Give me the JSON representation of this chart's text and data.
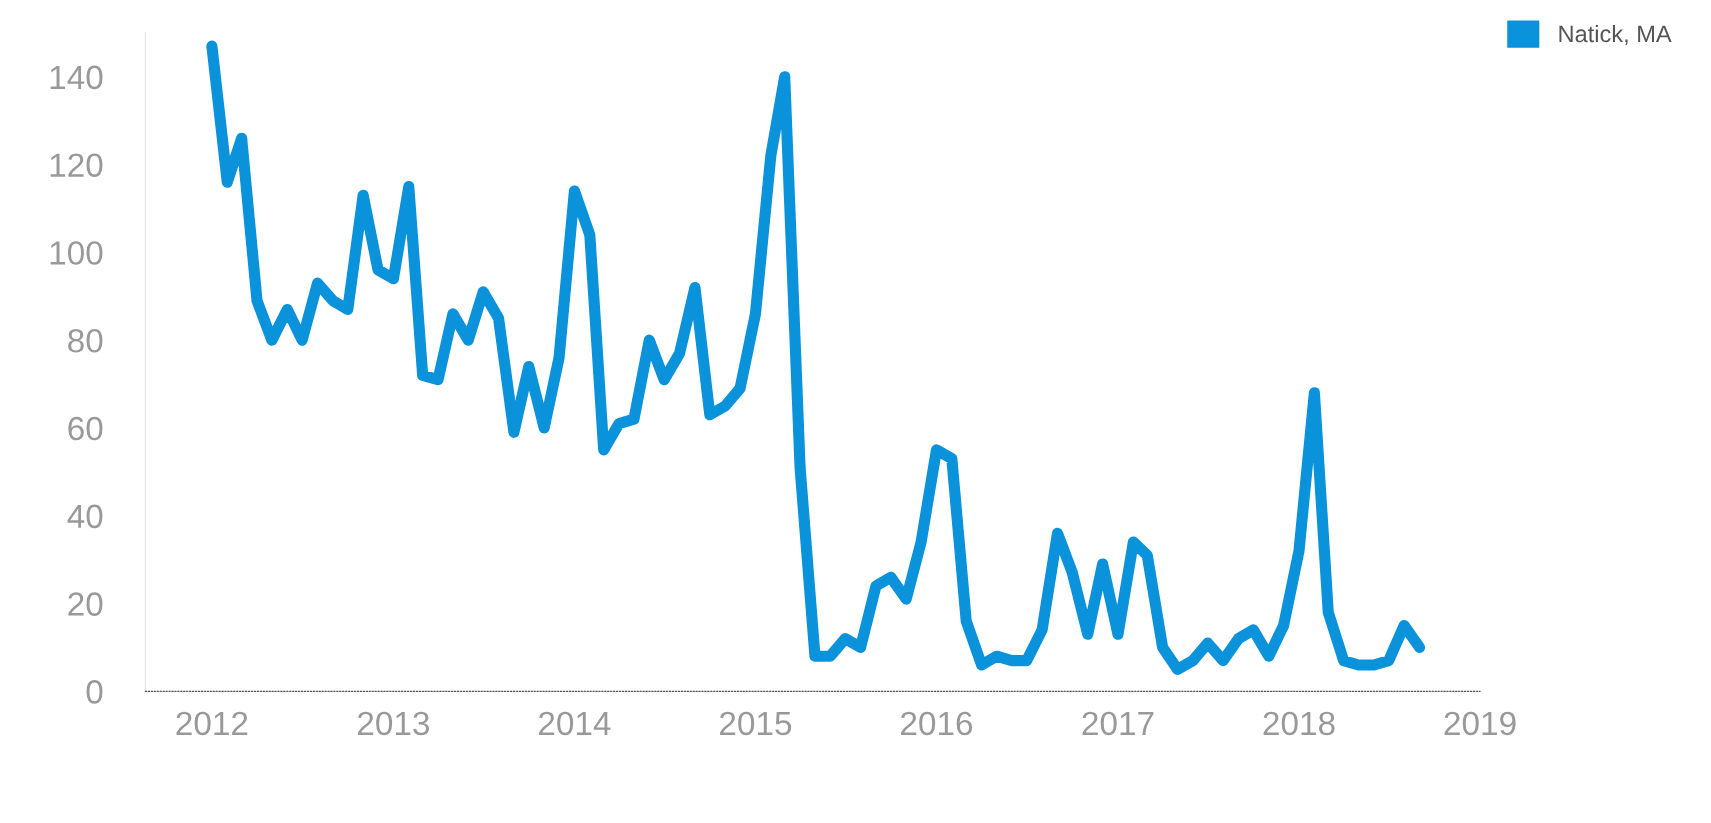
{
  "chart_data": {
    "type": "line",
    "x": [
      "2012-01",
      "2012-02",
      "2012-03",
      "2012-04",
      "2012-05",
      "2012-06",
      "2012-07",
      "2012-08",
      "2012-09",
      "2012-10",
      "2012-11",
      "2012-12",
      "2013-01",
      "2013-02",
      "2013-03",
      "2013-04",
      "2013-05",
      "2013-06",
      "2013-07",
      "2013-08",
      "2013-09",
      "2013-10",
      "2013-11",
      "2013-12",
      "2014-01",
      "2014-02",
      "2014-03",
      "2014-04",
      "2014-05",
      "2014-06",
      "2014-07",
      "2014-08",
      "2014-09",
      "2014-10",
      "2014-11",
      "2014-12",
      "2015-01",
      "2015-02",
      "2015-03",
      "2015-04",
      "2015-05",
      "2015-06",
      "2015-07",
      "2015-08",
      "2015-09",
      "2015-10",
      "2015-11",
      "2015-12",
      "2016-01",
      "2016-02",
      "2016-03",
      "2016-04",
      "2016-05",
      "2016-06",
      "2016-07",
      "2016-08",
      "2016-09",
      "2016-10",
      "2016-11",
      "2016-12",
      "2017-01",
      "2017-02",
      "2017-03",
      "2017-04",
      "2017-05",
      "2017-06",
      "2017-07",
      "2017-08",
      "2017-09",
      "2017-10",
      "2017-11",
      "2017-12",
      "2018-01",
      "2018-02",
      "2018-03",
      "2018-04",
      "2018-05",
      "2018-06",
      "2018-07",
      "2018-08",
      "2018-09"
    ],
    "series": [
      {
        "name": "Natick, MA",
        "color": "#0a93db",
        "values": [
          147,
          116,
          126,
          89,
          80,
          87,
          80,
          93,
          89,
          87,
          113,
          96,
          94,
          115,
          72,
          71,
          86,
          80,
          91,
          85,
          59,
          74,
          60,
          76,
          114,
          104,
          55,
          61,
          62,
          80,
          71,
          77,
          92,
          63,
          65,
          69,
          86,
          122,
          140,
          51,
          8,
          8,
          12,
          10,
          24,
          26,
          21,
          34,
          55,
          53,
          16,
          6,
          8,
          7,
          7,
          14,
          36,
          27,
          13,
          29,
          13,
          34,
          31,
          10,
          5,
          7,
          11,
          7,
          12,
          14,
          8,
          15,
          32,
          68,
          18,
          7,
          6,
          6,
          7,
          15,
          10
        ]
      }
    ],
    "xlim": [
      "2011-08-20",
      "2019-01-01"
    ],
    "xticks": [
      {
        "value": "2012-01-01",
        "label": "2012"
      },
      {
        "value": "2013-01-01",
        "label": "2013"
      },
      {
        "value": "2014-01-01",
        "label": "2014"
      },
      {
        "value": "2015-01-01",
        "label": "2015"
      },
      {
        "value": "2016-01-01",
        "label": "2016"
      },
      {
        "value": "2017-01-01",
        "label": "2017"
      },
      {
        "value": "2018-01-01",
        "label": "2018"
      },
      {
        "value": "2019-01-01",
        "label": "2019"
      }
    ],
    "ylim": [
      0,
      150
    ],
    "yticks": [
      0,
      20,
      40,
      60,
      80,
      100,
      120,
      140
    ],
    "grid": false,
    "legend": "top right",
    "marker": "none",
    "line_style": "solid"
  }
}
